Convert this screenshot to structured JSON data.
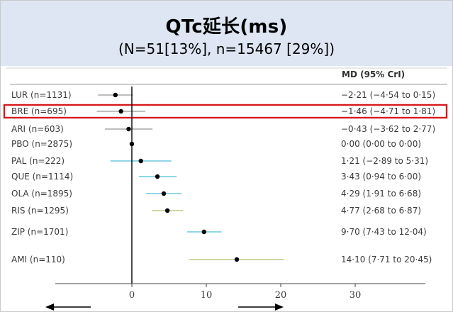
{
  "header": {
    "title": "QTc延长(ms)",
    "subtitle": "(N=51[13%], n=15467 [29%])"
  },
  "chart_data": {
    "type": "forest",
    "column_header": "MD (95% CrI)",
    "x_ticks": [
      0,
      10,
      20,
      30
    ],
    "xlim": [
      -15,
      35
    ],
    "reference_line": 0,
    "highlighted_label": "BRE (n=695)",
    "colors": {
      "ci_cyan": "#8fd6e8",
      "ci_olive": "#cdd8a0",
      "ci_gray": "#bdbdbd",
      "highlight": "#d7191c"
    },
    "rows": [
      {
        "label": "LUR (n=1131)",
        "mean": -2.21,
        "lower": -4.54,
        "upper": 0.15,
        "ci_text": "−2·21 (−4·54 to 0·15)",
        "color": "ci_gray"
      },
      {
        "label": "BRE (n=695)",
        "mean": -1.46,
        "lower": -4.71,
        "upper": 1.81,
        "ci_text": "−1·46 (−4·71 to 1·81)",
        "color": "ci_gray"
      },
      {
        "label": "ARI (n=603)",
        "mean": -0.43,
        "lower": -3.62,
        "upper": 2.77,
        "ci_text": "−0·43 (−3·62 to 2·77)",
        "color": "ci_gray"
      },
      {
        "label": "PBO (n=2875)",
        "mean": 0.0,
        "lower": 0.0,
        "upper": 0.0,
        "ci_text": "0·00 (0·00 to 0·00)",
        "color": "ci_gray"
      },
      {
        "label": "PAL (n=222)",
        "mean": 1.21,
        "lower": -2.89,
        "upper": 5.31,
        "ci_text": "1·21 (−2·89 to 5·31)",
        "color": "ci_cyan"
      },
      {
        "label": "QUE (n=1114)",
        "mean": 3.43,
        "lower": 0.94,
        "upper": 6.0,
        "ci_text": "3·43 (0·94 to 6·00)",
        "color": "ci_cyan"
      },
      {
        "label": "OLA (n=1895)",
        "mean": 4.29,
        "lower": 1.91,
        "upper": 6.68,
        "ci_text": "4·29 (1·91 to 6·68)",
        "color": "ci_cyan"
      },
      {
        "label": "RIS (n=1295)",
        "mean": 4.77,
        "lower": 2.68,
        "upper": 6.87,
        "ci_text": "4·77 (2·68 to 6·87)",
        "color": "ci_olive"
      },
      {
        "label": "ZIP (n=1701)",
        "mean": 9.7,
        "lower": 7.43,
        "upper": 12.04,
        "ci_text": "9·70 (7·43 to 12·04)",
        "color": "ci_cyan"
      },
      {
        "label": "AMI (n=110)",
        "mean": 14.1,
        "lower": 7.71,
        "upper": 20.45,
        "ci_text": "14·10 (7·71 to 20·45)",
        "color": "ci_olive"
      }
    ]
  }
}
